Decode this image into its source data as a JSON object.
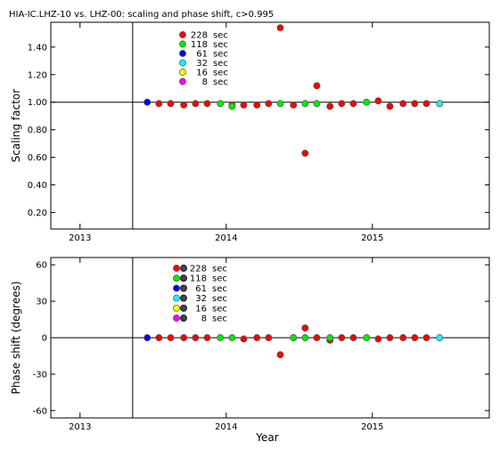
{
  "title": "HIA-IC.LHZ-10 vs. LHZ-00: scaling and phase shift, c>0.995",
  "legend_periods": [
    "228",
    "118",
    "61",
    "32",
    "16",
    "8"
  ],
  "legend_unit": "sec",
  "colors": {
    "228": "#ff0000",
    "118": "#00ee00",
    "61": "#0000ff",
    "32": "#00ffff",
    "16": "#ffff00",
    "8": "#ff00ff"
  },
  "chart_data": [
    {
      "type": "scatter",
      "ylabel": "Scaling factor",
      "xlabel": "",
      "ylim": [
        0.08,
        1.58
      ],
      "xlim": [
        2012.8,
        2015.8
      ],
      "x_ticks": [
        2013,
        2014,
        2015
      ],
      "y_ticks": [
        0.2,
        0.4,
        0.6,
        0.8,
        1.0,
        1.2,
        1.4
      ],
      "y_tick_labels": [
        "0.20",
        "0.40",
        "0.60",
        "0.80",
        "1.00",
        "1.20",
        "1.40"
      ],
      "reference_line": 1.0,
      "vertical_marker_x": 2013.36,
      "series": [
        {
          "name": "228 sec",
          "color": "#ff0000",
          "points": [
            [
              2013.54,
              0.99
            ],
            [
              2013.62,
              0.99
            ],
            [
              2013.71,
              0.98
            ],
            [
              2013.79,
              0.99
            ],
            [
              2013.87,
              0.99
            ],
            [
              2014.04,
              0.98
            ],
            [
              2014.12,
              0.98
            ],
            [
              2014.21,
              0.98
            ],
            [
              2014.29,
              0.99
            ],
            [
              2014.37,
              1.54
            ],
            [
              2014.46,
              0.98
            ],
            [
              2014.54,
              0.63
            ],
            [
              2014.62,
              1.12
            ],
            [
              2014.71,
              0.97
            ],
            [
              2014.79,
              0.99
            ],
            [
              2014.87,
              0.99
            ],
            [
              2015.04,
              1.01
            ],
            [
              2015.12,
              0.97
            ],
            [
              2015.21,
              0.99
            ],
            [
              2015.29,
              0.99
            ],
            [
              2015.37,
              0.99
            ]
          ]
        },
        {
          "name": "118 sec",
          "color": "#00ee00",
          "points": [
            [
              2013.96,
              0.99
            ],
            [
              2014.04,
              0.97
            ],
            [
              2014.37,
              0.99
            ],
            [
              2014.54,
              0.99
            ],
            [
              2014.62,
              0.99
            ],
            [
              2014.96,
              1.0
            ]
          ]
        },
        {
          "name": "61 sec",
          "color": "#0000ff",
          "points": [
            [
              2013.46,
              1.0
            ]
          ]
        },
        {
          "name": "32 sec",
          "color": "#00ffff",
          "points": [
            [
              2015.46,
              0.99
            ]
          ]
        }
      ]
    },
    {
      "type": "scatter",
      "ylabel": "Phase shift (degrees)",
      "xlabel": "Year",
      "ylim": [
        -66,
        66
      ],
      "xlim": [
        2012.8,
        2015.8
      ],
      "x_ticks": [
        2013,
        2014,
        2015
      ],
      "y_ticks": [
        -60,
        -30,
        0,
        30,
        60
      ],
      "y_tick_labels": [
        "-60",
        "-30",
        "0",
        "30",
        "60"
      ],
      "reference_line": 0,
      "vertical_marker_x": 2013.36,
      "series": [
        {
          "name": "228 sec",
          "color": "#ff0000",
          "points": [
            [
              2013.54,
              0
            ],
            [
              2013.62,
              0
            ],
            [
              2013.71,
              0
            ],
            [
              2013.79,
              0
            ],
            [
              2013.87,
              0
            ],
            [
              2014.12,
              -1
            ],
            [
              2014.21,
              0
            ],
            [
              2014.29,
              0
            ],
            [
              2014.37,
              -14
            ],
            [
              2014.46,
              0
            ],
            [
              2014.54,
              8
            ],
            [
              2014.62,
              0
            ],
            [
              2014.71,
              -2
            ],
            [
              2014.79,
              0
            ],
            [
              2014.87,
              0
            ],
            [
              2015.04,
              -1
            ],
            [
              2015.12,
              0
            ],
            [
              2015.21,
              0
            ],
            [
              2015.29,
              0
            ],
            [
              2015.37,
              0
            ]
          ]
        },
        {
          "name": "118 sec",
          "color": "#00ee00",
          "points": [
            [
              2013.96,
              0
            ],
            [
              2014.04,
              0
            ],
            [
              2014.46,
              0
            ],
            [
              2014.54,
              0
            ],
            [
              2014.71,
              0
            ],
            [
              2014.96,
              0
            ]
          ]
        },
        {
          "name": "61 sec",
          "color": "#0000ff",
          "points": [
            [
              2013.46,
              0
            ]
          ]
        },
        {
          "name": "32 sec",
          "color": "#00ffff",
          "points": [
            [
              2015.46,
              0
            ]
          ]
        }
      ]
    }
  ]
}
